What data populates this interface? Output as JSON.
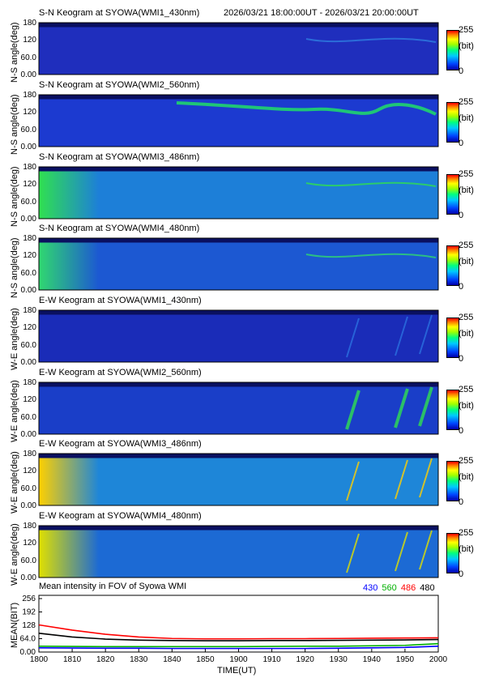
{
  "header": {
    "time_range": "2026/03/21 18:00:00UT - 2026/03/21 20:00:00UT"
  },
  "colorbar": {
    "max": "255",
    "unit": "(bit)",
    "min": "0"
  },
  "keograms": [
    {
      "title": "S-N Keogram at SYOWA(WMI1_430nm)",
      "ylabel": "N-S angle(deg)",
      "yticks": [
        "180",
        "120",
        "60.0",
        "0.00"
      ],
      "base": "#1f2ebd",
      "accent": "#2e7de0"
    },
    {
      "title": "S-N Keogram at SYOWA(WMI2_560nm)",
      "ylabel": "N-S angle(deg)",
      "yticks": [
        "180",
        "120",
        "60.0",
        "0.00"
      ],
      "base": "#1c3ad0",
      "accent": "#20e860"
    },
    {
      "title": "S-N Keogram at SYOWA(WMI3_486nm)",
      "ylabel": "N-S angle(deg)",
      "yticks": [
        "180",
        "120",
        "60.0",
        "0.00"
      ],
      "base": "#1d7fd8",
      "accent": "#30e050"
    },
    {
      "title": "S-N Keogram at SYOWA(WMI4_480nm)",
      "ylabel": "N-S angle(deg)",
      "yticks": [
        "180",
        "120",
        "60.0",
        "0.00"
      ],
      "base": "#1c58d2",
      "accent": "#30d870"
    },
    {
      "title": "E-W Keogram at SYOWA(WMI1_430nm)",
      "ylabel": "W-E angle(deg)",
      "yticks": [
        "180",
        "120",
        "60.0",
        "0.00"
      ],
      "base": "#1a2cb8",
      "accent": "#2a70e0"
    },
    {
      "title": "E-W Keogram at SYOWA(WMI2_560nm)",
      "ylabel": "W-E angle(deg)",
      "yticks": [
        "180",
        "120",
        "60.0",
        "0.00"
      ],
      "base": "#1a3ec8",
      "accent": "#30e050"
    },
    {
      "title": "E-W Keogram at SYOWA(WMI3_486nm)",
      "ylabel": "W-E angle(deg)",
      "yticks": [
        "180",
        "120",
        "60.0",
        "0.00"
      ],
      "base": "#1e86d8",
      "accent": "#ffd000"
    },
    {
      "title": "E-W Keogram at SYOWA(WMI4_480nm)",
      "ylabel": "W-E angle(deg)",
      "yticks": [
        "180",
        "120",
        "60.0",
        "0.00"
      ],
      "base": "#1c6ad4",
      "accent": "#e0e000"
    }
  ],
  "chart_data": {
    "type": "line",
    "title": "Mean intensity in FOV of Syowa WMI",
    "xlabel": "TIME(UT)",
    "ylabel": "MEAN(BIT)",
    "x_ticks": [
      "1800",
      "1810",
      "1820",
      "1830",
      "1840",
      "1850",
      "1900",
      "1910",
      "1920",
      "1930",
      "1940",
      "1950",
      "2000"
    ],
    "y_ticks": [
      "256",
      "192",
      "128",
      "64.0",
      "0.00"
    ],
    "ylim": [
      0,
      256
    ],
    "x": [
      "18:00",
      "18:10",
      "18:20",
      "18:30",
      "18:40",
      "18:50",
      "19:00",
      "19:10",
      "19:20",
      "19:30",
      "19:40",
      "19:50",
      "20:00"
    ],
    "series": [
      {
        "name": "430",
        "color": "#0000ff",
        "values": [
          20,
          19,
          18,
          18,
          17,
          17,
          17,
          17,
          17,
          18,
          20,
          22,
          28
        ]
      },
      {
        "name": "560",
        "color": "#00b000",
        "values": [
          28,
          27,
          26,
          26,
          26,
          26,
          26,
          27,
          28,
          28,
          30,
          32,
          40
        ]
      },
      {
        "name": "486",
        "color": "#ff0000",
        "values": [
          130,
          105,
          85,
          72,
          65,
          63,
          63,
          64,
          64,
          65,
          66,
          67,
          68
        ]
      },
      {
        "name": "480",
        "color": "#000000",
        "values": [
          90,
          72,
          62,
          57,
          55,
          54,
          54,
          55,
          55,
          56,
          57,
          58,
          60
        ]
      }
    ]
  }
}
